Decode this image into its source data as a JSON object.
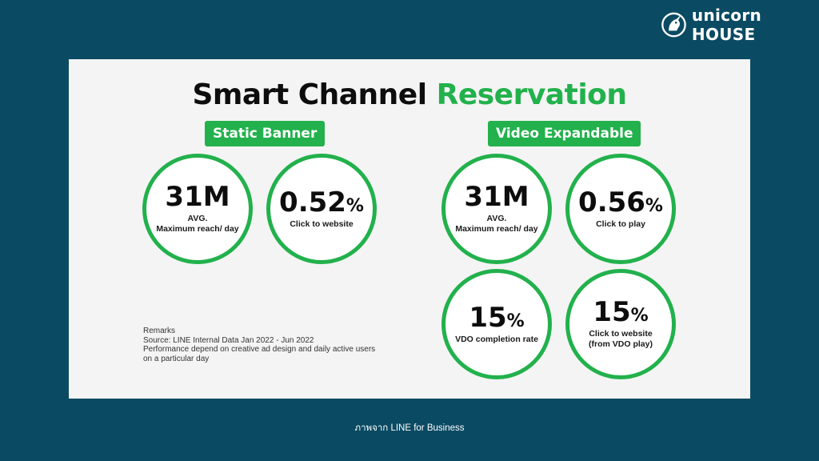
{
  "brand": {
    "name": "unicorn HOUSE"
  },
  "title": {
    "main": "Smart Channel",
    "accent": "Reservation"
  },
  "sections": {
    "static_banner": {
      "label": "Static Banner",
      "metrics": [
        {
          "value": "31M",
          "unit": "",
          "label": "AVG.",
          "sublabel": "Maximum reach/ day"
        },
        {
          "value": "0.52",
          "unit": "%",
          "label": "Click to website",
          "sublabel": ""
        }
      ]
    },
    "video_expandable": {
      "label": "Video Expandable",
      "metrics": [
        {
          "value": "31M",
          "unit": "",
          "label": "AVG.",
          "sublabel": "Maximum reach/ day"
        },
        {
          "value": "0.56",
          "unit": "%",
          "label": "Click to play",
          "sublabel": ""
        },
        {
          "value": "15",
          "unit": "%",
          "label": "VDO completion rate",
          "sublabel": ""
        },
        {
          "value": "15",
          "unit": "%",
          "label": "Click to website",
          "sublabel": "(from VDO play)"
        }
      ]
    }
  },
  "remarks": {
    "heading": "Remarks",
    "lines": [
      "Source: LINE Internal Data  Jan 2022 -  Jun 2022",
      "Performance depend on creative ad design and daily active users",
      "on a particular day"
    ]
  },
  "caption": "ภาพจาก  LINE for Business",
  "colors": {
    "background": "#0b4a63",
    "card": "#f4f4f4",
    "accent_green": "#22b14c",
    "text": "#0d0d0d"
  }
}
